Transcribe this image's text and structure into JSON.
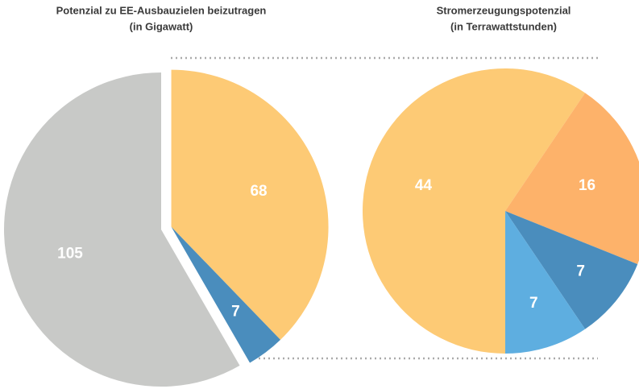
{
  "chart_data": [
    {
      "type": "pie",
      "title": "Potenzial zu EE-Ausbauzielen beizutragen",
      "subtitle": "(in Gigawatt)",
      "values": [
        68,
        7,
        105
      ],
      "colors": [
        "#fdca75",
        "#4a8dbd",
        "#c8c9c7"
      ]
    },
    {
      "type": "pie",
      "title": "Stromerzeugungspotenzial",
      "subtitle": "(in Terrawattstunden)",
      "values": [
        44,
        16,
        7,
        7
      ],
      "colors": [
        "#fdca75",
        "#fdb26a",
        "#4a8dbd",
        "#5eaee0"
      ]
    }
  ]
}
